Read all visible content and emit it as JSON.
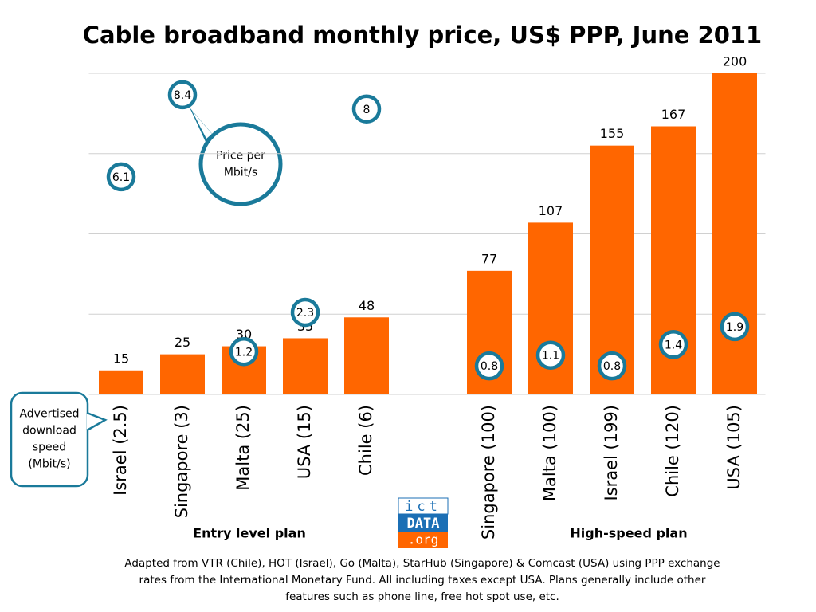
{
  "chart_data": {
    "type": "bar",
    "title": "Cable broadband monthly price, US$ PPP, June 2011",
    "categories": [
      "Israel (2.5)",
      "Singapore (3)",
      "Malta (25)",
      "USA (15)",
      "Chile (6)",
      null,
      "Singapore (100)",
      "Malta (100)",
      "Israel (199)",
      "Chile (120)",
      "USA (105)"
    ],
    "series": [
      {
        "color": "#ff6600",
        "values": [
          15,
          25,
          30,
          35,
          48,
          null,
          77,
          107,
          155,
          167,
          200
        ]
      },
      {
        "axis": "y2",
        "color": "#1a7a9a",
        "values": [
          6.1,
          8.4,
          1.2,
          2.3,
          8.0,
          null,
          0.8,
          1.1,
          0.8,
          1.4,
          1.9
        ]
      }
    ],
    "ylim": [
      0,
      200
    ],
    "y2lim": [
      0,
      9
    ],
    "yticks": [
      0,
      50,
      100,
      150,
      200
    ],
    "grid": true,
    "groups": [
      "Entry level plan",
      "High-speed plan"
    ],
    "annotations": [
      "Price per Mbit/s",
      "Advertised download speed (Mbit/s)"
    ],
    "logo": [
      "ict",
      "DATA",
      ".org"
    ],
    "footnote": [
      "Adapted from VTR (Chile), HOT (Israel), Go (Malta), StarHub (Singapore) & Comcast (USA) using PPP exchange",
      "rates from the International Monetary Fund. All including taxes except USA. Plans generally include other",
      "features such as phone line, free hot spot use, etc."
    ]
  }
}
